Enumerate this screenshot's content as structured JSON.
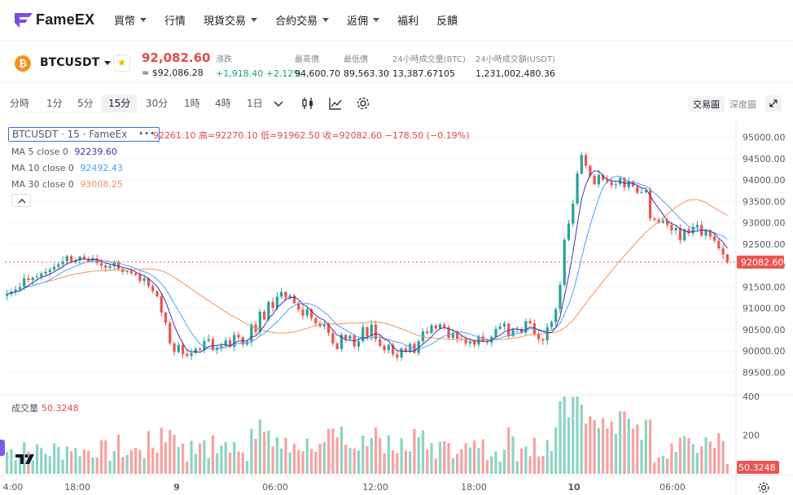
{
  "nav": {
    "brand": "FameEX",
    "items": [
      {
        "label": "買幣",
        "caret": true
      },
      {
        "label": "行情",
        "caret": false
      },
      {
        "label": "現貨交易",
        "caret": true
      },
      {
        "label": "合約交易",
        "caret": true
      },
      {
        "label": "返佣",
        "caret": true
      },
      {
        "label": "福利",
        "caret": false
      },
      {
        "label": "反饋",
        "caret": false
      }
    ]
  },
  "ticker": {
    "coin_glyph": "₿",
    "symbol": "BTCUSDT",
    "price": "92,082.60",
    "price_approx": "≈ $92,086.28",
    "stats": [
      {
        "label": "漲跌",
        "value": "+1,918.40 +2.12%",
        "color": "green"
      },
      {
        "label": "最高價",
        "value": "94,600.70"
      },
      {
        "label": "最低價",
        "value": "89,563.30"
      },
      {
        "label": "24小時成交量(BTC)",
        "value": "13,387.67105"
      },
      {
        "label": "24小時成交額(USDT)",
        "value": "1,231,002,480.36"
      }
    ]
  },
  "toolbar": {
    "timeframes": [
      "分時",
      "1分",
      "5分",
      "15分",
      "30分",
      "1時",
      "4時",
      "1日"
    ],
    "active": "15分",
    "view_chart": "交易圖",
    "view_depth": "深度圖"
  },
  "chart": {
    "legend_title": "BTCUSDT · 15 · FameEx",
    "ohlc_text": "92261.10 高=92270.10 低=91962.50 收=92082.60 −178.50 (−0.19%)",
    "ma5_label": "MA 5 close 0",
    "ma5_value": "92239.60",
    "ma10_label": "MA 10 close 0",
    "ma10_value": "92492.43",
    "ma30_label": "MA 30 close 0",
    "ma30_value": "93008.25",
    "volume_label": "成交量",
    "volume_value": "50.3248",
    "current_price_tag": "92082.60",
    "current_volume_tag": "50.3248",
    "price_ticks": [
      "95000.00",
      "94500.00",
      "94000.00",
      "93500.00",
      "93000.00",
      "92500.00",
      "92000.00",
      "91500.00",
      "91000.00",
      "90500.00",
      "90000.00",
      "89500.00"
    ],
    "volume_ticks": [
      "400",
      "200"
    ],
    "time_ticks": [
      "4:00",
      "18:00",
      "9",
      "06:00",
      "12:00",
      "18:00",
      "10",
      "06:00"
    ],
    "colors": {
      "up": "#26a69a",
      "down": "#ef5350",
      "ma5": "#4b2fa8",
      "ma10": "#4aa3f0",
      "ma30": "#f5915c",
      "price_tag": "#ef5350"
    }
  },
  "chart_data": {
    "type": "candlestick",
    "title": "BTCUSDT · 15 · FameEx",
    "ylim": [
      89300,
      95200
    ],
    "closes": [
      91330,
      91390,
      91440,
      91500,
      91700,
      91660,
      91720,
      91740,
      91810,
      91850,
      91900,
      91970,
      92030,
      92100,
      92220,
      92080,
      92120,
      92210,
      92160,
      92100,
      92170,
      92060,
      92000,
      91950,
      91990,
      92060,
      91920,
      91850,
      91870,
      91820,
      91780,
      91640,
      91700,
      91520,
      91400,
      91280,
      90900,
      90660,
      90180,
      89980,
      90140,
      89930,
      89890,
      89950,
      90050,
      90020,
      90240,
      90280,
      90030,
      90080,
      90120,
      90250,
      90100,
      90380,
      90320,
      90150,
      90210,
      90620,
      90450,
      90920,
      90740,
      91150,
      91010,
      91270,
      91380,
      91250,
      91300,
      91120,
      90970,
      90830,
      90980,
      90770,
      90650,
      90580,
      90640,
      90420,
      90180,
      90050,
      90380,
      90280,
      90360,
      90110,
      90230,
      90560,
      90340,
      90620,
      90280,
      90120,
      90020,
      90150,
      89920,
      89850,
      90060,
      89980,
      90170,
      89960,
      90230,
      90460,
      90420,
      90600,
      90530,
      90620,
      90560,
      90310,
      90420,
      90290,
      90280,
      90180,
      90230,
      90150,
      90340,
      90230,
      90200,
      90330,
      90520,
      90580,
      90640,
      90350,
      90500,
      90520,
      90430,
      90700,
      90650,
      90400,
      90280,
      90250,
      90560,
      90680,
      90980,
      91550,
      92600,
      92980,
      93450,
      94150,
      94580,
      94330,
      94100,
      93900,
      94120,
      94010,
      93950,
      93880,
      93900,
      94050,
      93830,
      93970,
      93850,
      93700,
      93720,
      93760,
      93100,
      93070,
      93000,
      93050,
      92950,
      92820,
      92880,
      92590,
      92850,
      92750,
      92900,
      92950,
      92700,
      92820,
      92680,
      92580,
      92400,
      92260,
      92080
    ],
    "ma5_series": "MA 5 close 0",
    "ma10_series": "MA 10 close 0",
    "ma30_series": "MA 30 close 0",
    "volume_max": 400
  }
}
